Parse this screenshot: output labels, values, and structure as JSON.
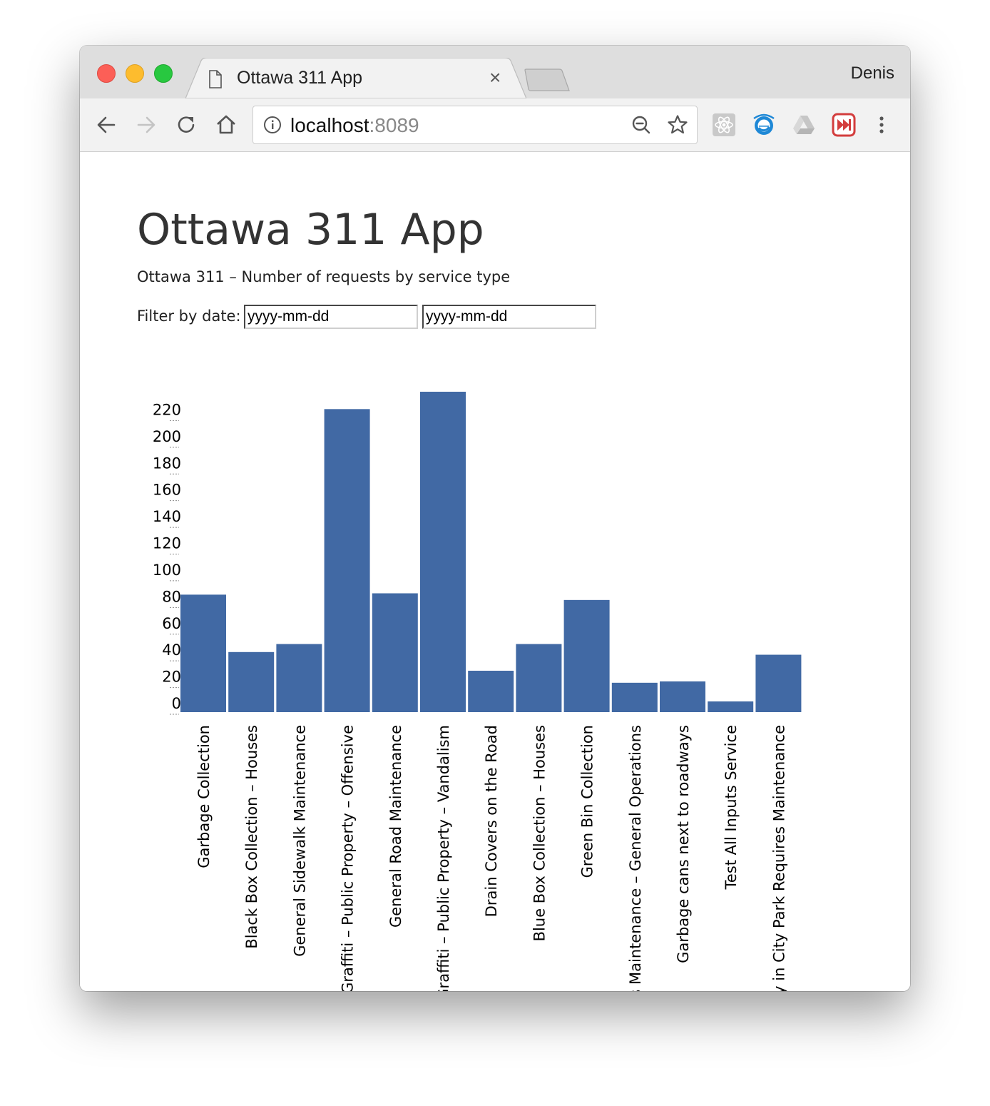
{
  "browser": {
    "tab_title": "Ottawa 311 App",
    "tab_close": "×",
    "profile_name": "Denis",
    "url_host": "localhost",
    "url_port": ":8089"
  },
  "page": {
    "title": "Ottawa 311 App",
    "subtitle": "Ottawa 311 – Number of requests by service type",
    "filter_label": "Filter by date:",
    "date_from_placeholder": "yyyy-mm-dd",
    "date_to_placeholder": "yyyy-mm-dd"
  },
  "chart_data": {
    "type": "bar",
    "categories": [
      "Garbage Collection",
      "Black Box Collection – Houses",
      "General Sidewalk Maintenance",
      "Graffiti – Public Property – Offensive",
      "General Road Maintenance",
      "Graffiti – Public Property – Vandalism",
      "Drain Covers on the Road",
      "Blue Box Collection – Houses",
      "Green Bin Collection",
      "Roads Maintenance – General Operations",
      "Garbage cans next to roadways",
      "Test All Inputs Service",
      "Pathway in City Park Requires Maintenance"
    ],
    "values": [
      88,
      45,
      51,
      227,
      89,
      240,
      31,
      51,
      84,
      22,
      23,
      8,
      43
    ],
    "yticks": [
      0,
      20,
      40,
      60,
      80,
      100,
      120,
      140,
      160,
      180,
      200,
      220
    ],
    "ylim": [
      0,
      240
    ],
    "bar_color": "#4169a4",
    "grid": false,
    "legend": "none"
  }
}
